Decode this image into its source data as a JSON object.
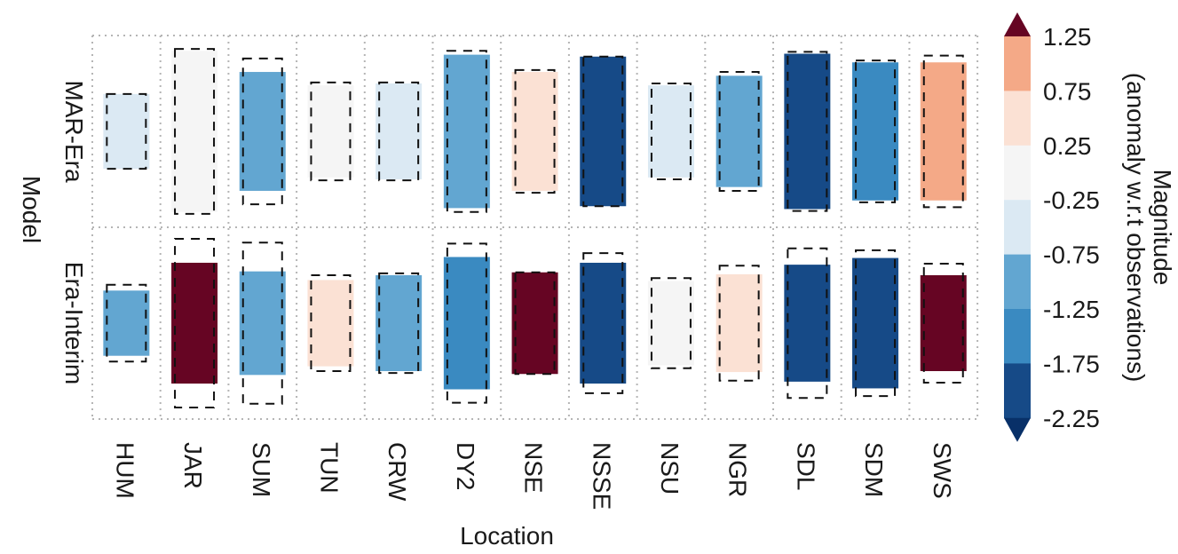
{
  "chart_data": {
    "type": "heatmap",
    "title": "",
    "xlabel": "Location",
    "ylabel": "Model",
    "categories": [
      "HUM",
      "JAR",
      "SUM",
      "TUN",
      "CRW",
      "DY2",
      "NSE",
      "NSSE",
      "NSU",
      "NGR",
      "SDL",
      "SDM",
      "SWS"
    ],
    "rows": [
      {
        "name": "MAR-Era",
        "magnitude": [
          -0.5,
          0.0,
          -1.0,
          0.0,
          -0.5,
          -1.0,
          0.5,
          -2.0,
          -0.5,
          -1.0,
          -2.0,
          -1.5,
          1.0
        ],
        "fill_size": [
          0.39,
          0.84,
          0.62,
          0.48,
          0.5,
          0.8,
          0.62,
          0.78,
          0.48,
          0.58,
          0.81,
          0.72,
          0.72
        ],
        "dashed_size": [
          0.39,
          0.86,
          0.76,
          0.51,
          0.51,
          0.84,
          0.64,
          0.78,
          0.5,
          0.62,
          0.83,
          0.74,
          0.79
        ]
      },
      {
        "name": "Era-Interim",
        "magnitude": [
          -1.0,
          2.0,
          -1.0,
          0.5,
          -1.0,
          -1.5,
          2.0,
          -2.0,
          0.0,
          0.5,
          -2.0,
          -2.0,
          2.0
        ],
        "fill_size": [
          0.34,
          0.63,
          0.54,
          0.45,
          0.5,
          0.69,
          0.53,
          0.63,
          0.44,
          0.51,
          0.61,
          0.68,
          0.5
        ],
        "dashed_size": [
          0.4,
          0.88,
          0.84,
          0.5,
          0.52,
          0.83,
          0.53,
          0.73,
          0.47,
          0.6,
          0.78,
          0.76,
          0.62
        ]
      }
    ],
    "colorbar": {
      "label": "Magnitude\n(anomaly w.r.t observations)",
      "ticks": [
        "1.25",
        "0.75",
        "0.25",
        "-0.25",
        "-0.75",
        "-1.25",
        "-1.75",
        "-2.25"
      ],
      "bins": [
        {
          "range": [
            -2.25,
            -1.75
          ],
          "color": "#164a87"
        },
        {
          "range": [
            -1.75,
            -1.25
          ],
          "color": "#3a8ac1"
        },
        {
          "range": [
            -1.25,
            -0.75
          ],
          "color": "#62a6d1"
        },
        {
          "range": [
            -0.75,
            -0.25
          ],
          "color": "#dbe9f3"
        },
        {
          "range": [
            -0.25,
            0.25
          ],
          "color": "#f5f5f5"
        },
        {
          "range": [
            0.25,
            0.75
          ],
          "color": "#fbe1d4"
        },
        {
          "range": [
            0.75,
            1.25
          ],
          "color": "#f4a987"
        }
      ],
      "over_color": "#660523",
      "under_color": "#083068",
      "extend": "both"
    },
    "grid": true,
    "grid_style": "dotted",
    "legend_placement": "right"
  }
}
